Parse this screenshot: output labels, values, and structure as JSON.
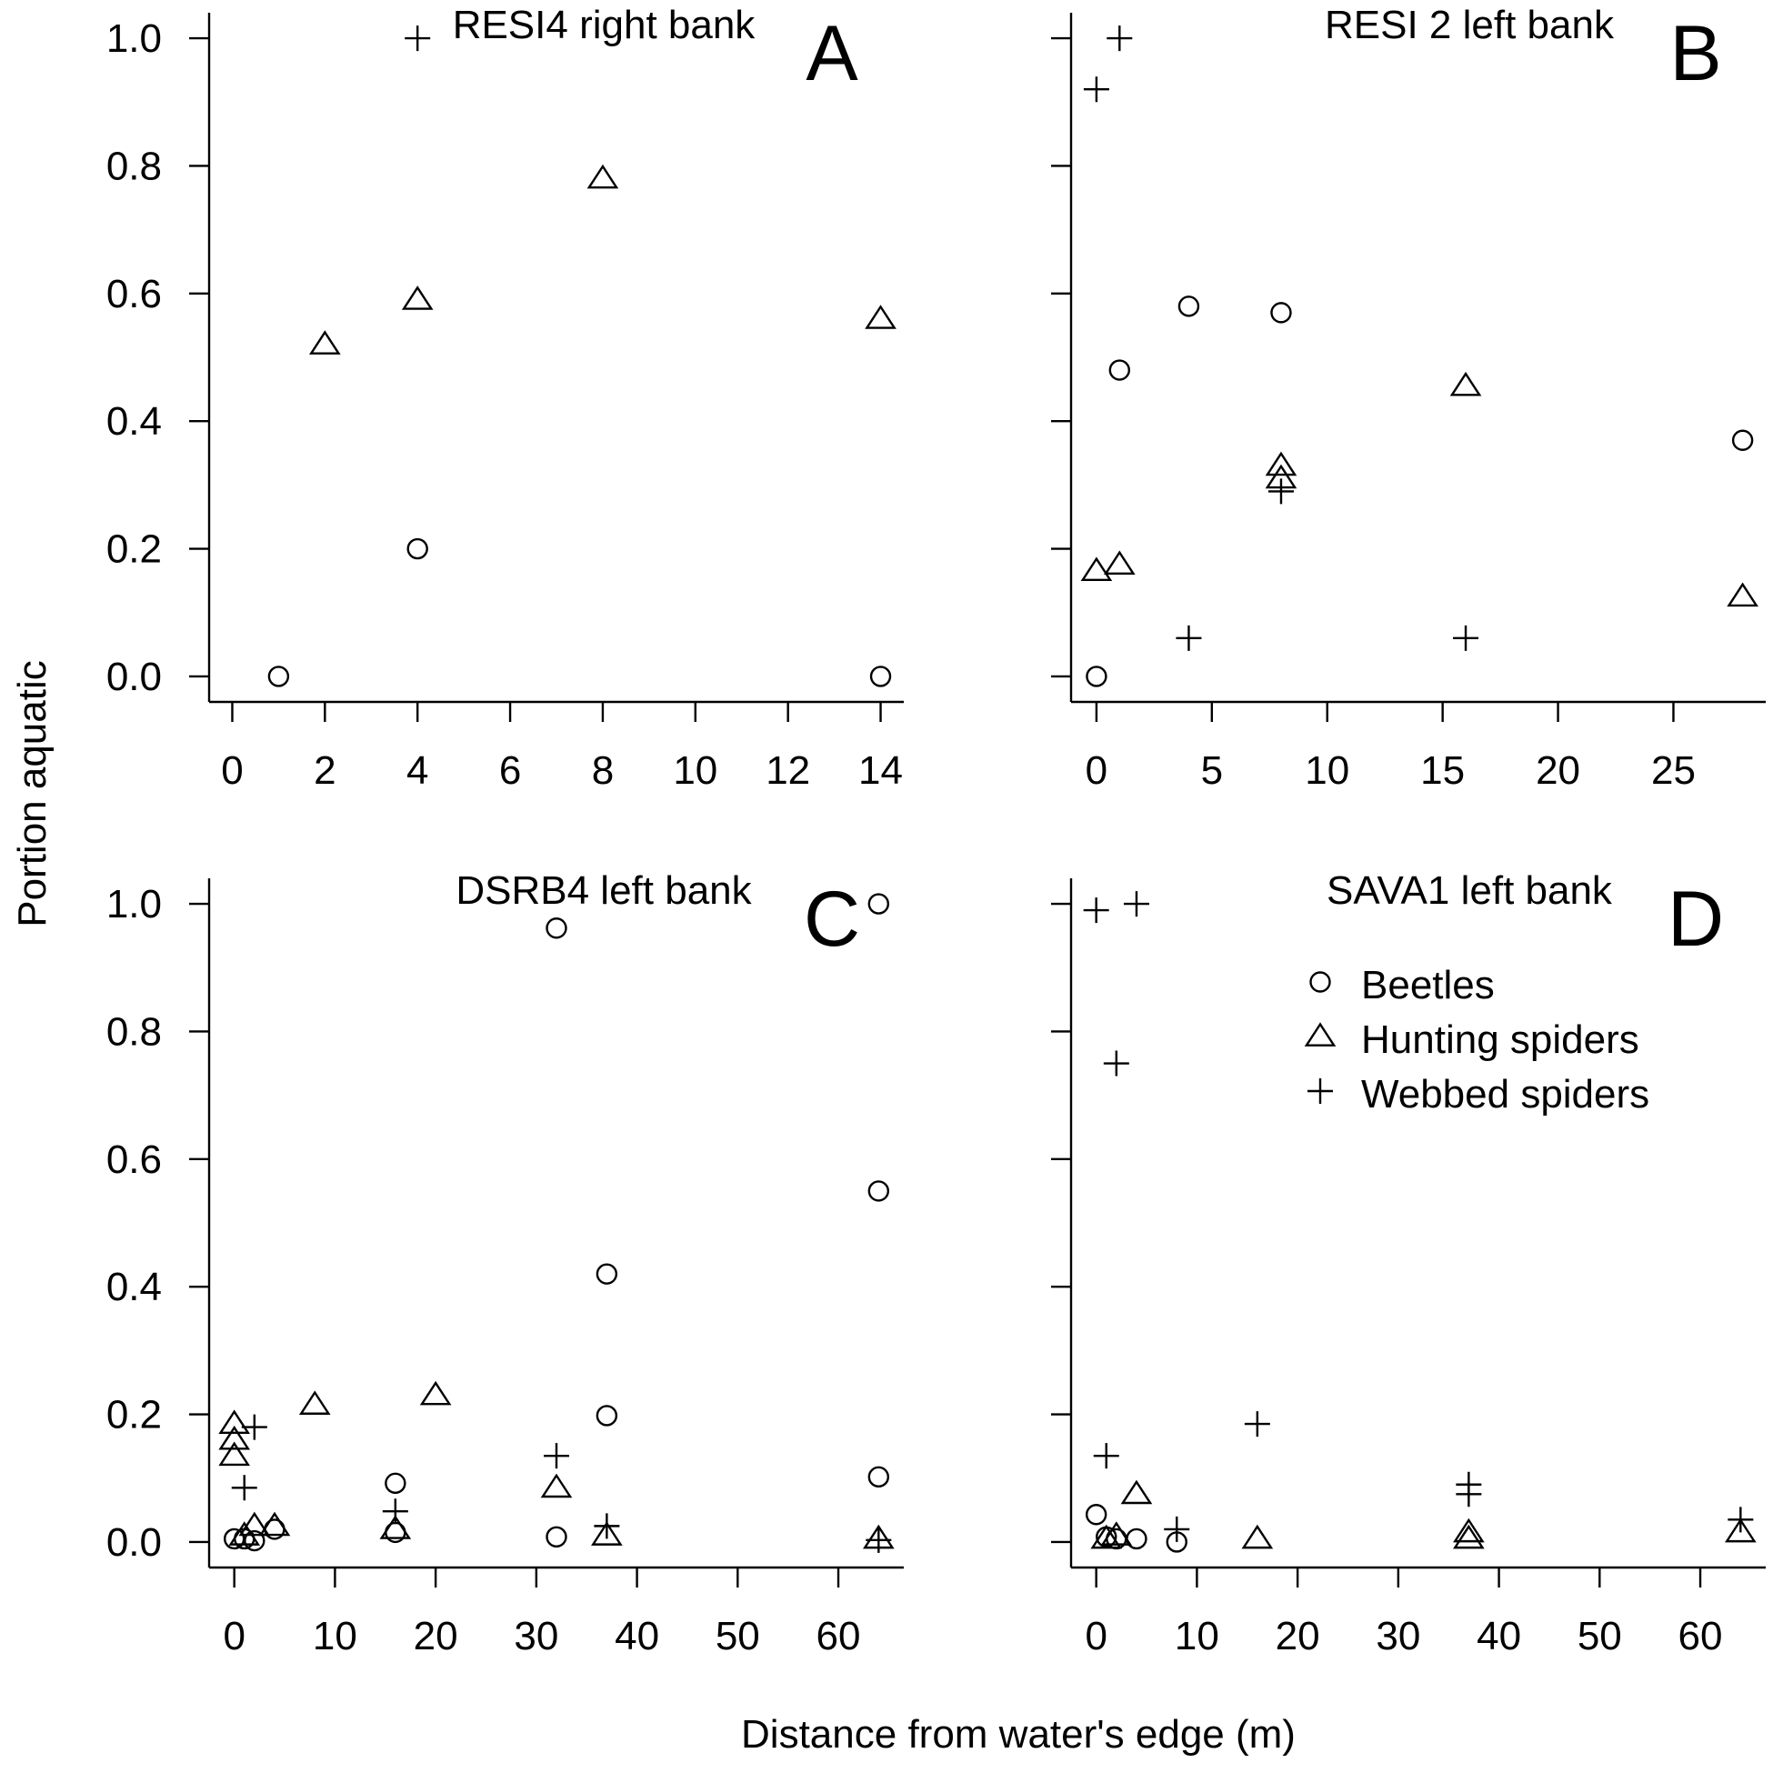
{
  "figure": {
    "ylabel": "Portion aquatic",
    "xlabel": "Distance from water's edge (m)",
    "legend": {
      "position": "upper-right of panel D",
      "entries": [
        {
          "label": "Beetles",
          "marker": "circle"
        },
        {
          "label": "Hunting spiders",
          "marker": "triangle"
        },
        {
          "label": "Webbed spiders",
          "marker": "plus"
        }
      ]
    }
  },
  "chart_data": [
    {
      "type": "scatter",
      "panel": "A",
      "title": "RESI4 right bank",
      "xlim": [
        -0.5,
        14.5
      ],
      "ylim": [
        -0.04,
        1.04
      ],
      "xticks": [
        0,
        2,
        4,
        6,
        8,
        10,
        12,
        14
      ],
      "yticks": [
        0.0,
        0.2,
        0.4,
        0.6,
        0.8,
        1.0
      ],
      "series": [
        {
          "name": "Beetles",
          "marker": "circle",
          "points": [
            [
              1,
              0.0
            ],
            [
              4,
              0.2
            ],
            [
              14,
              0.0
            ]
          ]
        },
        {
          "name": "Hunting spiders",
          "marker": "triangle",
          "points": [
            [
              2,
              0.52
            ],
            [
              4,
              0.59
            ],
            [
              8,
              0.78
            ],
            [
              14,
              0.56
            ]
          ]
        },
        {
          "name": "Webbed spiders",
          "marker": "plus",
          "points": [
            [
              4,
              1.0
            ]
          ]
        }
      ]
    },
    {
      "type": "scatter",
      "panel": "B",
      "title": "RESI 2 left bank",
      "xlim": [
        -1.1,
        29.0
      ],
      "ylim": [
        -0.04,
        1.04
      ],
      "xticks": [
        0,
        5,
        10,
        15,
        20,
        25
      ],
      "yticks": [
        0.0,
        0.2,
        0.4,
        0.6,
        0.8,
        1.0
      ],
      "series": [
        {
          "name": "Beetles",
          "marker": "circle",
          "points": [
            [
              0,
              0.0
            ],
            [
              1,
              0.48
            ],
            [
              4,
              0.58
            ],
            [
              8,
              0.57
            ],
            [
              28,
              0.37
            ]
          ]
        },
        {
          "name": "Hunting spiders",
          "marker": "triangle",
          "points": [
            [
              0,
              0.165
            ],
            [
              1,
              0.175
            ],
            [
              8,
              0.33
            ],
            [
              8,
              0.31
            ],
            [
              16,
              0.455
            ],
            [
              28,
              0.125
            ]
          ]
        },
        {
          "name": "Webbed spiders",
          "marker": "plus",
          "points": [
            [
              0,
              0.92
            ],
            [
              1,
              1.0
            ],
            [
              4,
              0.06
            ],
            [
              8,
              0.29
            ],
            [
              16,
              0.06
            ]
          ]
        }
      ]
    },
    {
      "type": "scatter",
      "panel": "C",
      "title": "DSRB4 left bank",
      "xlim": [
        -2.5,
        66.5
      ],
      "ylim": [
        -0.04,
        1.04
      ],
      "xticks": [
        0,
        10,
        20,
        30,
        40,
        50,
        60
      ],
      "yticks": [
        0.0,
        0.2,
        0.4,
        0.6,
        0.8,
        1.0
      ],
      "series": [
        {
          "name": "Beetles",
          "marker": "circle",
          "points": [
            [
              0,
              0.005
            ],
            [
              1,
              0.005
            ],
            [
              2,
              0.002
            ],
            [
              4,
              0.02
            ],
            [
              16,
              0.092
            ],
            [
              16,
              0.015
            ],
            [
              32,
              0.962
            ],
            [
              32,
              0.008
            ],
            [
              37,
              0.42
            ],
            [
              37,
              0.198
            ],
            [
              64,
              1.0
            ],
            [
              64,
              0.55
            ],
            [
              64,
              0.102
            ]
          ]
        },
        {
          "name": "Hunting spiders",
          "marker": "triangle",
          "points": [
            [
              0,
              0.185
            ],
            [
              0,
              0.16
            ],
            [
              0,
              0.135
            ],
            [
              1,
              0.01
            ],
            [
              2,
              0.025
            ],
            [
              4,
              0.025
            ],
            [
              8,
              0.215
            ],
            [
              16,
              0.02
            ],
            [
              20,
              0.23
            ],
            [
              32,
              0.085
            ],
            [
              37,
              0.01
            ],
            [
              64,
              0.005
            ]
          ]
        },
        {
          "name": "Webbed spiders",
          "marker": "plus",
          "points": [
            [
              1,
              0.085
            ],
            [
              2,
              0.18
            ],
            [
              16,
              0.048
            ],
            [
              32,
              0.135
            ],
            [
              37,
              0.025
            ],
            [
              64,
              0.003
            ]
          ]
        }
      ]
    },
    {
      "type": "scatter",
      "panel": "D",
      "title": "SAVA1 left bank",
      "xlim": [
        -2.5,
        66.5
      ],
      "ylim": [
        -0.04,
        1.04
      ],
      "xticks": [
        0,
        10,
        20,
        30,
        40,
        50,
        60
      ],
      "yticks": [
        0.0,
        0.2,
        0.4,
        0.6,
        0.8,
        1.0
      ],
      "series": [
        {
          "name": "Beetles",
          "marker": "circle",
          "points": [
            [
              0,
              0.043
            ],
            [
              1,
              0.008
            ],
            [
              2,
              0.005
            ],
            [
              4,
              0.005
            ],
            [
              8,
              0.0
            ]
          ]
        },
        {
          "name": "Hunting spiders",
          "marker": "triangle",
          "points": [
            [
              1,
              0.005
            ],
            [
              2,
              0.01
            ],
            [
              4,
              0.075
            ],
            [
              16,
              0.005
            ],
            [
              37,
              0.015
            ],
            [
              37,
              0.005
            ],
            [
              64,
              0.015
            ]
          ]
        },
        {
          "name": "Webbed spiders",
          "marker": "plus",
          "points": [
            [
              0,
              0.99
            ],
            [
              4,
              1.0
            ],
            [
              2,
              0.75
            ],
            [
              1,
              0.135
            ],
            [
              8,
              0.02
            ],
            [
              16,
              0.185
            ],
            [
              37,
              0.09
            ],
            [
              37,
              0.075
            ],
            [
              64,
              0.035
            ]
          ]
        }
      ]
    }
  ]
}
